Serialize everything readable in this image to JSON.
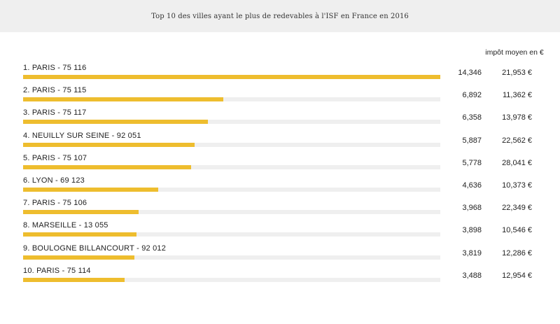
{
  "chart_data": {
    "type": "bar",
    "title": "Top 10 des villes ayant le plus de redevables à l'ISF en France en 2016",
    "column_header": "impôt moyen en €",
    "categories": [
      "1. PARIS - 75 116",
      "2. PARIS - 75 115",
      "3. PARIS - 75 117",
      "4. NEUILLY SUR SEINE - 92 051",
      "5. PARIS - 75 107",
      "6. LYON - 69 123",
      "7. PARIS - 75 106",
      "8. MARSEILLE - 13 055",
      "9. BOULOGNE BILLANCOURT - 92 012",
      "10. PARIS - 75 114"
    ],
    "values": [
      14346,
      6892,
      6358,
      5887,
      5778,
      4636,
      3968,
      3898,
      3819,
      3488
    ],
    "value_labels": [
      "14,346",
      "6,892",
      "6,358",
      "5,887",
      "5,778",
      "4,636",
      "3,968",
      "3,898",
      "3,819",
      "3,488"
    ],
    "impot_moyen": [
      "21,953 €",
      "11,362 €",
      "13,978 €",
      "22,562 €",
      "28,041 €",
      "10,373 €",
      "22,349 €",
      "10,546 €",
      "12,286 €",
      "12,954 €"
    ],
    "xlim": [
      0,
      14346
    ],
    "colors": {
      "bar": "#eebd2e",
      "track": "#efefef",
      "header_bg": "#efefef"
    }
  }
}
